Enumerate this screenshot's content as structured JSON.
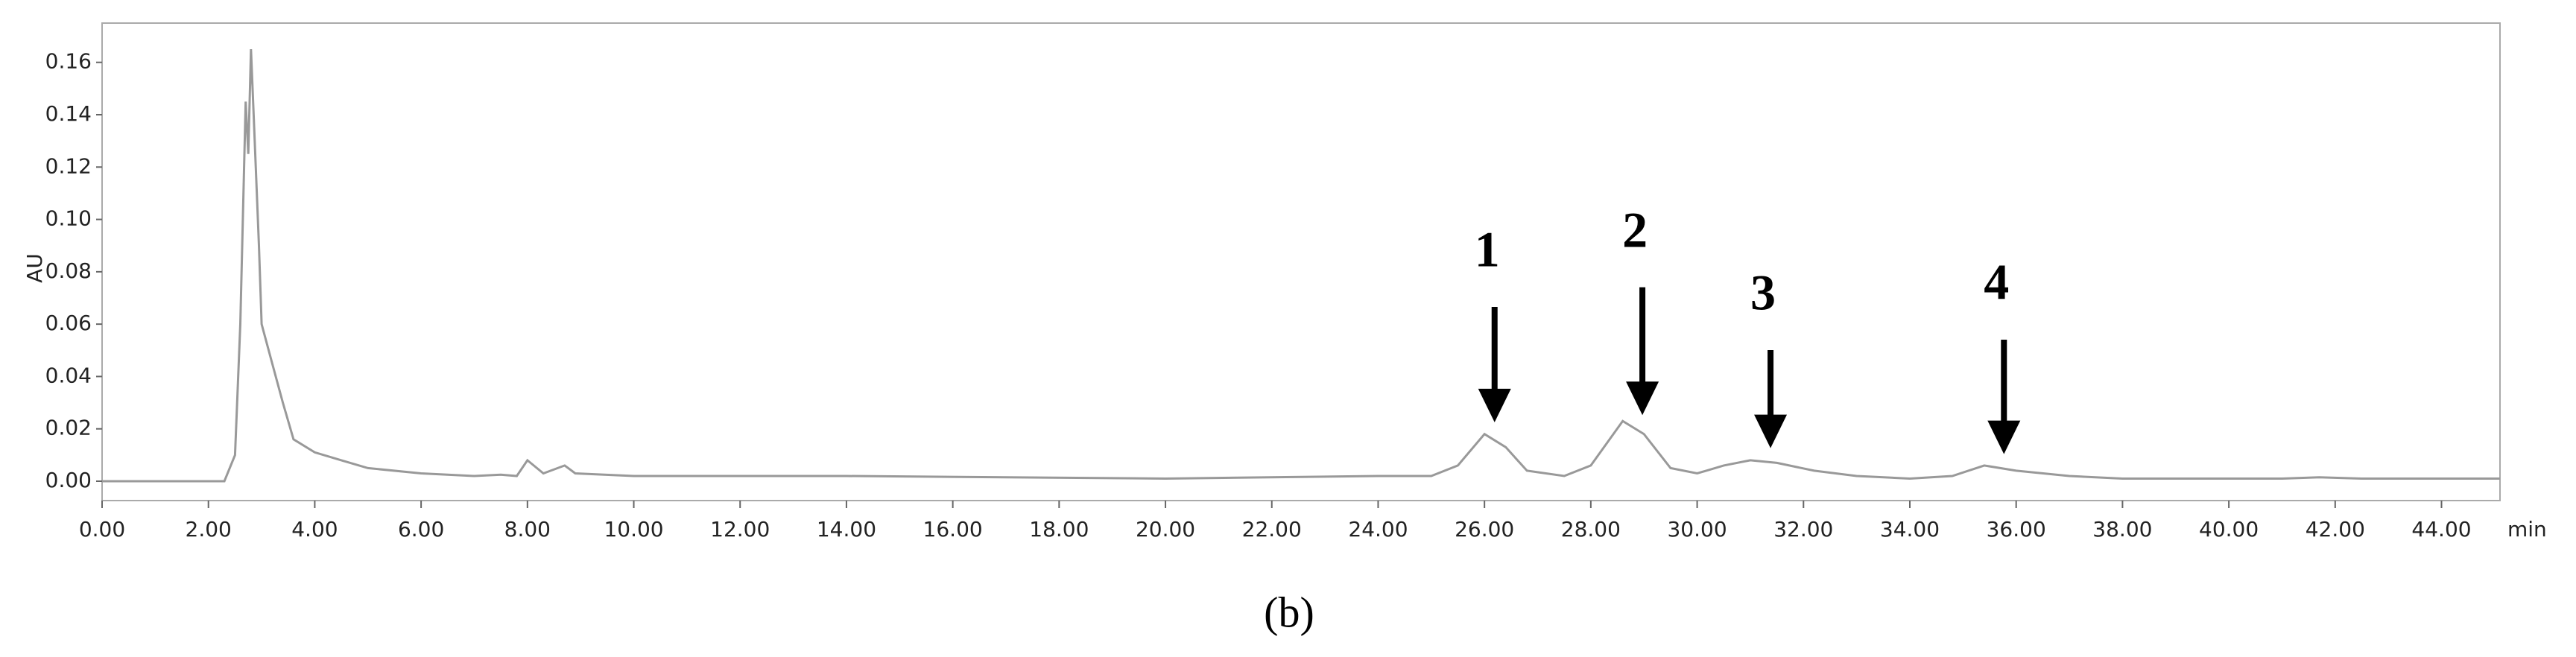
{
  "chart_data": {
    "type": "line",
    "caption": "(b)",
    "y_label": "AU",
    "x_label": "min",
    "color": "#999999",
    "x": [
      0,
      2.3,
      2.5,
      2.6,
      2.7,
      2.75,
      2.8,
      2.85,
      2.95,
      3.0,
      3.2,
      3.4,
      3.6,
      4.0,
      4.5,
      5,
      6,
      7,
      7.5,
      7.8,
      8.0,
      8.3,
      8.7,
      8.9,
      10,
      14,
      20,
      24,
      25,
      25.5,
      26.0,
      26.4,
      26.8,
      27.5,
      28.0,
      28.6,
      29.0,
      29.5,
      30.0,
      30.5,
      31.0,
      31.5,
      32.2,
      33,
      34,
      34.8,
      35.4,
      36,
      37,
      38,
      41,
      41.7,
      42.5,
      45.1
    ],
    "values": [
      0,
      0,
      0.01,
      0.06,
      0.145,
      0.125,
      0.165,
      0.14,
      0.09,
      0.06,
      0.045,
      0.03,
      0.016,
      0.011,
      0.008,
      0.005,
      0.003,
      0.002,
      0.0025,
      0.002,
      0.008,
      0.003,
      0.006,
      0.003,
      0.002,
      0.002,
      0.001,
      0.002,
      0.002,
      0.006,
      0.018,
      0.013,
      0.004,
      0.002,
      0.006,
      0.023,
      0.018,
      0.005,
      0.003,
      0.006,
      0.008,
      0.007,
      0.004,
      0.002,
      0.001,
      0.002,
      0.006,
      0.004,
      0.002,
      0.001,
      0.001,
      0.0015,
      0.001,
      0.001
    ],
    "xlim": [
      0,
      45.1
    ],
    "ylim": [
      -0.0074,
      0.175
    ],
    "xticks": [
      {
        "value": 0,
        "label": "0.00"
      },
      {
        "value": 2,
        "label": "2.00"
      },
      {
        "value": 4,
        "label": "4.00"
      },
      {
        "value": 6,
        "label": "6.00"
      },
      {
        "value": 8,
        "label": "8.00"
      },
      {
        "value": 10,
        "label": "10.00"
      },
      {
        "value": 12,
        "label": "12.00"
      },
      {
        "value": 14,
        "label": "14.00"
      },
      {
        "value": 16,
        "label": "16.00"
      },
      {
        "value": 18,
        "label": "18.00"
      },
      {
        "value": 20,
        "label": "20.00"
      },
      {
        "value": 22,
        "label": "22.00"
      },
      {
        "value": 24,
        "label": "24.00"
      },
      {
        "value": 26,
        "label": "26.00"
      },
      {
        "value": 28,
        "label": "28.00"
      },
      {
        "value": 30,
        "label": "30.00"
      },
      {
        "value": 32,
        "label": "32.00"
      },
      {
        "value": 34,
        "label": "34.00"
      },
      {
        "value": 36,
        "label": "36.00"
      },
      {
        "value": 38,
        "label": "38.00"
      },
      {
        "value": 40,
        "label": "40.00"
      },
      {
        "value": 42,
        "label": "42.00"
      },
      {
        "value": 44,
        "label": "44.00"
      }
    ],
    "yticks": [
      {
        "value": 0,
        "label": "0.00"
      },
      {
        "value": 0.02,
        "label": "0.02"
      },
      {
        "value": 0.04,
        "label": "0.04"
      },
      {
        "value": 0.06,
        "label": "0.06"
      },
      {
        "value": 0.08,
        "label": "0.08"
      },
      {
        "value": 0.1,
        "label": "0.10"
      },
      {
        "value": 0.12,
        "label": "0.12"
      },
      {
        "value": 0.14,
        "label": "0.14"
      },
      {
        "value": 0.16,
        "label": "0.16"
      }
    ],
    "annotations": [
      {
        "text": "1",
        "x": 26.05,
        "y": 0.0865
      },
      {
        "text": "2",
        "x": 28.83,
        "y": 0.094
      },
      {
        "text": "3",
        "x": 31.24,
        "y": 0.07
      },
      {
        "text": "4",
        "x": 35.63,
        "y": 0.074
      }
    ]
  }
}
